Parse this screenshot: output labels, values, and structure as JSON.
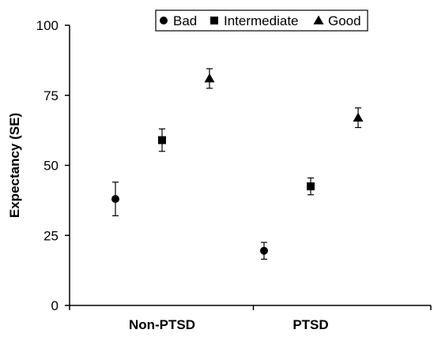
{
  "chart_data": {
    "type": "scatter",
    "title": "",
    "xlabel": "",
    "ylabel": "Expectancy (SE)",
    "categories": [
      "Non-PTSD",
      "PTSD"
    ],
    "ylim": [
      0,
      100
    ],
    "yticks": [
      0,
      25,
      50,
      75,
      100
    ],
    "grid": false,
    "legend_position": "top-center",
    "series": [
      {
        "name": "Bad",
        "marker": "circle",
        "values": [
          38,
          19.5
        ],
        "error": [
          6,
          3
        ]
      },
      {
        "name": "Intermediate",
        "marker": "square",
        "values": [
          59,
          42.5
        ],
        "error": [
          4,
          3
        ]
      },
      {
        "name": "Good",
        "marker": "triangle",
        "values": [
          81,
          67
        ],
        "error": [
          3.5,
          3.5
        ]
      }
    ]
  }
}
